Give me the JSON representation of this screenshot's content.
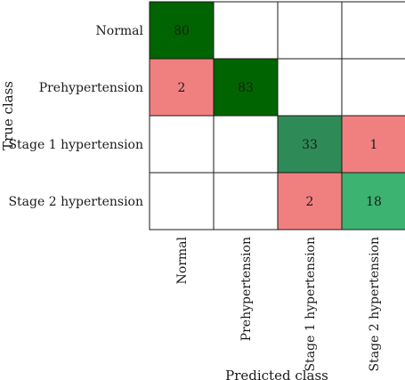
{
  "chart_data": {
    "type": "heatmap",
    "xlabel": "Predicted class",
    "ylabel": "True class",
    "row_labels": [
      "Normal",
      "Prehypertension",
      "Stage 1 hypertension",
      "Stage 2 hypertension"
    ],
    "col_labels": [
      "Normal",
      "Prehypertension",
      "Stage 1 hypertension",
      "Stage 2 hypertension"
    ],
    "matrix": [
      [
        80,
        null,
        null,
        null
      ],
      [
        2,
        83,
        null,
        null
      ],
      [
        null,
        null,
        33,
        1
      ],
      [
        null,
        null,
        2,
        18
      ]
    ],
    "cell_colors": [
      [
        "#006400",
        "#ffffff",
        "#ffffff",
        "#ffffff"
      ],
      [
        "#f08080",
        "#006400",
        "#ffffff",
        "#ffffff"
      ],
      [
        "#ffffff",
        "#ffffff",
        "#2e8b57",
        "#f08080"
      ],
      [
        "#ffffff",
        "#ffffff",
        "#f08080",
        "#3cb371"
      ]
    ]
  }
}
